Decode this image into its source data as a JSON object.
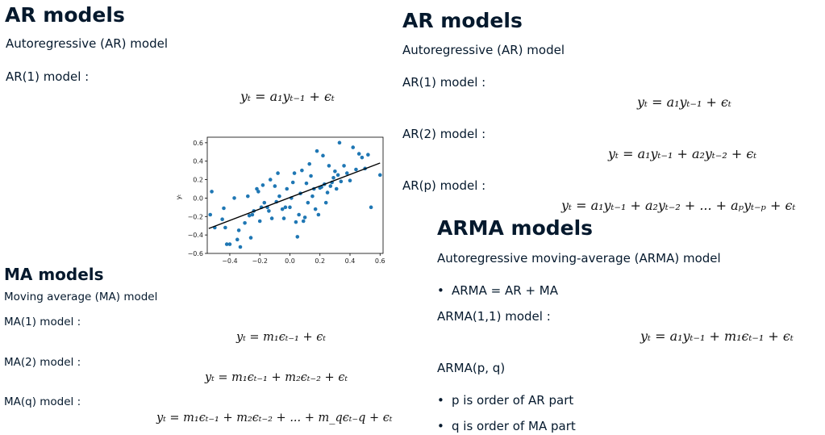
{
  "left_top": {
    "title": "AR models",
    "subtitle": "Autoregressive (AR) model",
    "ar1_label": "AR(1) model :",
    "ar1_eq": "yₜ = a₁yₜ₋₁ + ϵₜ"
  },
  "right_top": {
    "title": "AR models",
    "subtitle": "Autoregressive (AR) model",
    "ar1_label": "AR(1) model :",
    "ar1_eq": "yₜ = a₁yₜ₋₁ + ϵₜ",
    "ar2_label": "AR(2) model :",
    "ar2_eq": "yₜ = a₁yₜ₋₁ + a₂yₜ₋₂ + ϵₜ",
    "arp_label": "AR(p) model :",
    "arp_eq": "yₜ = a₁yₜ₋₁ + a₂yₜ₋₂ + ... + aₚyₜ₋ₚ + ϵₜ"
  },
  "ma": {
    "title": "MA models",
    "subtitle": "Moving average (MA) model",
    "ma1_label": "MA(1) model :",
    "ma1_eq": "yₜ = m₁ϵₜ₋₁ + ϵₜ",
    "ma2_label": "MA(2) model :",
    "ma2_eq": "yₜ = m₁ϵₜ₋₁ + m₂ϵₜ₋₂ + ϵₜ",
    "maq_label": "MA(q) model :",
    "maq_eq": "yₜ = m₁ϵₜ₋₁ + m₂ϵₜ₋₂ + ... + m_qϵₜ₋q + ϵₜ"
  },
  "arma": {
    "title": "ARMA models",
    "subtitle": "Autoregressive moving-average (ARMA) model",
    "bullet1": "ARMA = AR + MA",
    "arma11_label": "ARMA(1,1) model :",
    "arma11_eq": "yₜ = a₁yₜ₋₁ + m₁ϵₜ₋₁ + ϵₜ",
    "armapq_label": "ARMA(p, q)",
    "bullet2": "p is order of AR part",
    "bullet3": "q is order of MA part"
  },
  "chart_data": {
    "type": "scatter",
    "xlabel": "",
    "ylabel": "yₜ",
    "xlim": [
      -0.55,
      0.62
    ],
    "ylim": [
      -0.6,
      0.66
    ],
    "xticks": [
      "−0.4",
      "−0.2",
      "0.0",
      "0.2",
      "0.4",
      "0.6"
    ],
    "xtick_values": [
      -0.4,
      -0.2,
      0.0,
      0.2,
      0.4,
      0.6
    ],
    "yticks": [
      "0.6",
      "0.4",
      "0.2",
      "0.0",
      "−0.2",
      "−0.4",
      "−0.6"
    ],
    "ytick_values": [
      0.6,
      0.4,
      0.2,
      0.0,
      -0.2,
      -0.4,
      -0.6
    ],
    "point_color": "#1f77b4",
    "line_color": "#000000",
    "fit_line": [
      [
        -0.54,
        -0.33
      ],
      [
        0.6,
        0.38
      ]
    ],
    "points": [
      [
        -0.53,
        -0.18
      ],
      [
        -0.52,
        0.07
      ],
      [
        -0.5,
        -0.32
      ],
      [
        -0.45,
        -0.23
      ],
      [
        -0.44,
        -0.11
      ],
      [
        -0.43,
        -0.32
      ],
      [
        -0.42,
        -0.5
      ],
      [
        -0.4,
        -0.5
      ],
      [
        -0.37,
        0.0
      ],
      [
        -0.35,
        -0.45
      ],
      [
        -0.34,
        -0.35
      ],
      [
        -0.33,
        -0.53
      ],
      [
        -0.3,
        -0.27
      ],
      [
        -0.28,
        0.02
      ],
      [
        -0.27,
        -0.19
      ],
      [
        -0.26,
        -0.43
      ],
      [
        -0.25,
        -0.18
      ],
      [
        -0.24,
        -0.14
      ],
      [
        -0.22,
        0.1
      ],
      [
        -0.21,
        0.07
      ],
      [
        -0.2,
        -0.25
      ],
      [
        -0.19,
        -0.1
      ],
      [
        -0.18,
        0.14
      ],
      [
        -0.17,
        -0.05
      ],
      [
        -0.15,
        -0.1
      ],
      [
        -0.14,
        -0.14
      ],
      [
        -0.13,
        0.2
      ],
      [
        -0.12,
        -0.22
      ],
      [
        -0.1,
        0.13
      ],
      [
        -0.09,
        -0.04
      ],
      [
        -0.08,
        0.27
      ],
      [
        -0.07,
        0.02
      ],
      [
        -0.05,
        -0.12
      ],
      [
        -0.04,
        -0.22
      ],
      [
        -0.03,
        -0.1
      ],
      [
        -0.02,
        0.1
      ],
      [
        0.0,
        -0.1
      ],
      [
        0.01,
        0.0
      ],
      [
        0.02,
        0.17
      ],
      [
        0.03,
        0.27
      ],
      [
        0.04,
        -0.26
      ],
      [
        0.05,
        -0.42
      ],
      [
        0.06,
        -0.18
      ],
      [
        0.07,
        0.05
      ],
      [
        0.08,
        0.3
      ],
      [
        0.09,
        -0.25
      ],
      [
        0.1,
        -0.21
      ],
      [
        0.11,
        0.16
      ],
      [
        0.12,
        -0.05
      ],
      [
        0.13,
        0.37
      ],
      [
        0.14,
        0.24
      ],
      [
        0.15,
        0.02
      ],
      [
        0.16,
        0.1
      ],
      [
        0.17,
        -0.12
      ],
      [
        0.18,
        0.51
      ],
      [
        0.19,
        -0.18
      ],
      [
        0.2,
        0.11
      ],
      [
        0.21,
        0.12
      ],
      [
        0.22,
        0.46
      ],
      [
        0.23,
        0.15
      ],
      [
        0.24,
        -0.05
      ],
      [
        0.25,
        0.06
      ],
      [
        0.26,
        0.35
      ],
      [
        0.27,
        0.13
      ],
      [
        0.28,
        0.17
      ],
      [
        0.29,
        0.22
      ],
      [
        0.3,
        0.29
      ],
      [
        0.31,
        0.1
      ],
      [
        0.32,
        0.25
      ],
      [
        0.33,
        0.6
      ],
      [
        0.34,
        0.18
      ],
      [
        0.36,
        0.35
      ],
      [
        0.38,
        0.27
      ],
      [
        0.4,
        0.19
      ],
      [
        0.42,
        0.55
      ],
      [
        0.44,
        0.31
      ],
      [
        0.46,
        0.48
      ],
      [
        0.48,
        0.44
      ],
      [
        0.5,
        0.32
      ],
      [
        0.52,
        0.47
      ],
      [
        0.54,
        -0.1
      ],
      [
        0.6,
        0.25
      ]
    ]
  }
}
